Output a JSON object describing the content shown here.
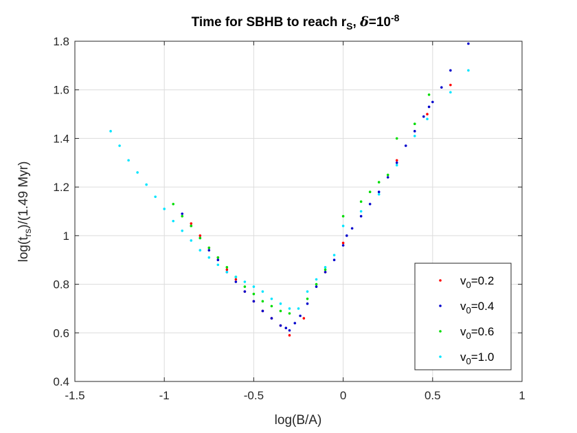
{
  "chart_data": {
    "type": "scatter",
    "title": {
      "main": "Time for SBHB to reach r",
      "main_sub": "S",
      "sep": ", ",
      "greek": "δ",
      "eq": "=10",
      "exp": "-8"
    },
    "xlabel": "log(B/A)",
    "ylabel": {
      "pre": "log(t",
      "sub": "rs",
      "post": ")/(1.49 Myr)"
    },
    "xlim": [
      -1.5,
      1
    ],
    "ylim": [
      0.4,
      1.8
    ],
    "xticks": [
      -1.5,
      -1,
      -0.5,
      0,
      0.5,
      1
    ],
    "xtick_labels": [
      "-1.5",
      "-1",
      "-0.5",
      "0",
      "0.5",
      "1"
    ],
    "yticks": [
      0.4,
      0.6,
      0.8,
      1,
      1.2,
      1.4,
      1.6,
      1.8
    ],
    "ytick_labels": [
      "0.4",
      "0.6",
      "0.8",
      "1",
      "1.2",
      "1.4",
      "1.6",
      "1.8"
    ],
    "grid": true,
    "legend_position": "bottom-right",
    "series": [
      {
        "name": "v0=0.2",
        "label": {
          "pre": "v",
          "sub": "0",
          "post": "=0.2"
        },
        "color": "#ff0000",
        "x": [
          -0.3,
          -0.35,
          -0.4,
          -0.45,
          -0.5,
          -0.55,
          -0.6,
          -0.65,
          -0.7,
          -0.75,
          -0.8,
          -0.85,
          -0.22,
          -0.1,
          0.0,
          0.3,
          0.47,
          0.6
        ],
        "y": [
          0.59,
          0.63,
          0.66,
          0.69,
          0.73,
          0.77,
          0.82,
          0.86,
          0.91,
          0.95,
          1.0,
          1.05,
          0.66,
          0.85,
          0.97,
          1.31,
          1.5,
          1.62
        ]
      },
      {
        "name": "v0=0.4",
        "label": {
          "pre": "v",
          "sub": "0",
          "post": "=0.4"
        },
        "color": "#0000cc",
        "x": [
          -0.9,
          -0.85,
          -0.8,
          -0.75,
          -0.7,
          -0.65,
          -0.6,
          -0.55,
          -0.5,
          -0.45,
          -0.4,
          -0.35,
          -0.32,
          -0.3,
          -0.27,
          -0.24,
          -0.2,
          -0.15,
          -0.1,
          -0.05,
          0.0,
          0.02,
          0.05,
          0.1,
          0.15,
          0.2,
          0.25,
          0.3,
          0.35,
          0.4,
          0.45,
          0.48,
          0.5,
          0.55,
          0.6,
          0.7
        ],
        "y": [
          1.09,
          1.04,
          0.99,
          0.94,
          0.9,
          0.85,
          0.81,
          0.77,
          0.73,
          0.69,
          0.66,
          0.63,
          0.62,
          0.61,
          0.64,
          0.67,
          0.72,
          0.79,
          0.85,
          0.9,
          0.96,
          1.0,
          1.03,
          1.08,
          1.13,
          1.18,
          1.24,
          1.3,
          1.37,
          1.43,
          1.49,
          1.53,
          1.55,
          1.61,
          1.68,
          1.79
        ]
      },
      {
        "name": "v0=0.6",
        "label": {
          "pre": "v",
          "sub": "0",
          "post": "=0.6"
        },
        "color": "#00dd00",
        "x": [
          -0.95,
          -0.9,
          -0.85,
          -0.8,
          -0.75,
          -0.7,
          -0.65,
          -0.6,
          -0.55,
          -0.5,
          -0.45,
          -0.4,
          -0.35,
          -0.3,
          -0.2,
          -0.15,
          -0.1,
          0.0,
          0.1,
          0.15,
          0.2,
          0.25,
          0.3,
          0.4,
          0.48
        ],
        "y": [
          1.13,
          1.08,
          1.04,
          0.99,
          0.95,
          0.91,
          0.87,
          0.83,
          0.79,
          0.76,
          0.73,
          0.71,
          0.69,
          0.68,
          0.74,
          0.8,
          0.86,
          1.08,
          1.14,
          1.18,
          1.22,
          1.25,
          1.4,
          1.46,
          1.58
        ]
      },
      {
        "name": "v0=1.0",
        "label": {
          "pre": "v",
          "sub": "0",
          "post": "=1.0"
        },
        "color": "#00e5ff",
        "x": [
          -1.3,
          -1.25,
          -1.2,
          -1.15,
          -1.1,
          -1.05,
          -1.0,
          -0.95,
          -0.9,
          -0.85,
          -0.8,
          -0.75,
          -0.7,
          -0.65,
          -0.6,
          -0.55,
          -0.5,
          -0.45,
          -0.4,
          -0.35,
          -0.3,
          -0.25,
          -0.2,
          -0.15,
          -0.1,
          -0.05,
          0.0,
          0.1,
          0.2,
          0.3,
          0.4,
          0.47,
          0.6,
          0.7
        ],
        "y": [
          1.43,
          1.37,
          1.31,
          1.26,
          1.21,
          1.16,
          1.11,
          1.06,
          1.02,
          0.98,
          0.94,
          0.91,
          0.88,
          0.85,
          0.83,
          0.81,
          0.79,
          0.77,
          0.74,
          0.72,
          0.7,
          0.7,
          0.77,
          0.82,
          0.87,
          0.92,
          1.04,
          1.1,
          1.17,
          1.29,
          1.41,
          1.48,
          1.59,
          1.68
        ]
      }
    ]
  }
}
